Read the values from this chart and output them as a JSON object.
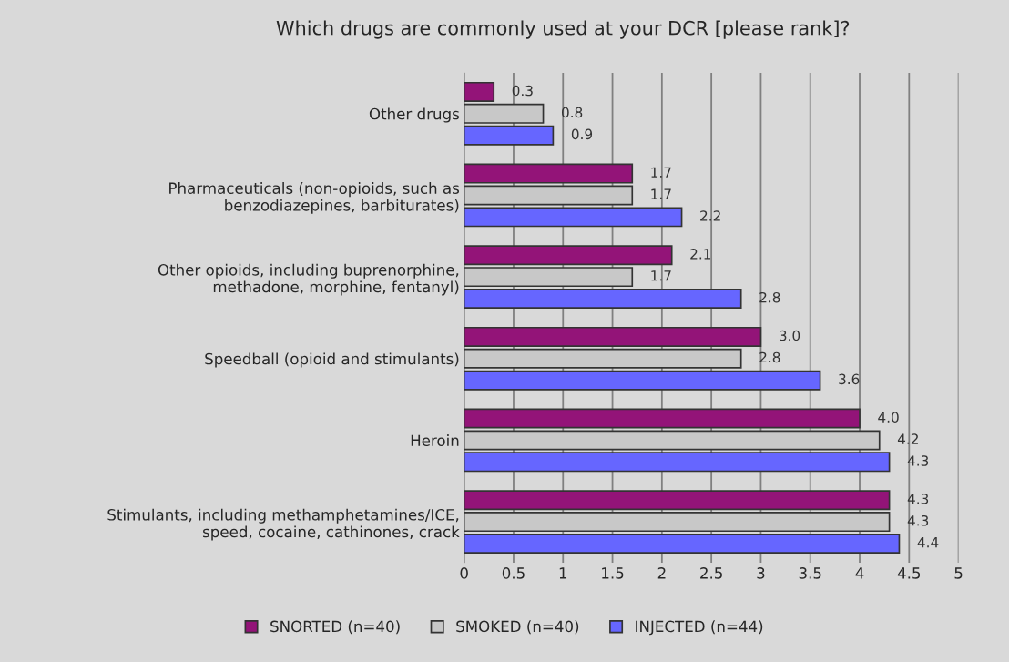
{
  "chart_data": {
    "type": "bar",
    "orientation": "horizontal",
    "title": "Which drugs are commonly used at your DCR [please rank]?",
    "categories": [
      "Other drugs",
      "Pharmaceuticals (non-opioids, such as\nbenzodiazepines, barbiturates)",
      "Other opioids, including buprenorphine,\nmethadone, morphine, fentanyl)",
      "Speedball (opioid and stimulants)",
      "Heroin",
      "Stimulants, including methamphetamines/ICE,\nspeed, cocaine, cathinones, crack"
    ],
    "series": [
      {
        "name": "SNORTED (n=40)",
        "color": "#931478",
        "values": [
          0.3,
          1.7,
          2.1,
          3.0,
          4.0,
          4.3
        ],
        "value_labels": [
          "0.3",
          "1.7",
          "2.1",
          "3.0",
          "4.0",
          "4.3"
        ]
      },
      {
        "name": "SMOKED (n=40)",
        "color": "#c8c8c8",
        "values": [
          0.8,
          1.7,
          1.7,
          2.8,
          4.2,
          4.3
        ],
        "value_labels": [
          "0.8",
          "1.7",
          "1.7",
          "2.8",
          "4.2",
          "4.3"
        ]
      },
      {
        "name": "INJECTED (n=44)",
        "color": "#6666ff",
        "values": [
          0.9,
          2.2,
          2.8,
          3.6,
          4.3,
          4.4
        ],
        "value_labels": [
          "0.9",
          "2.2",
          "2.8",
          "3.6",
          "4.3",
          "4.4"
        ]
      }
    ],
    "xlim": [
      0,
      5
    ],
    "xticks": [
      0,
      0.5,
      1,
      1.5,
      2,
      2.5,
      3,
      3.5,
      4,
      4.5,
      5
    ],
    "grid": "x",
    "legend": "bottom"
  }
}
